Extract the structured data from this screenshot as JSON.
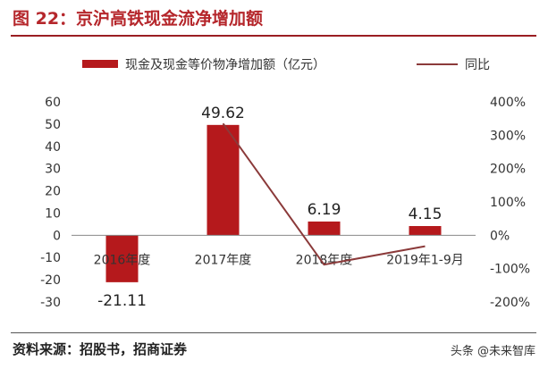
{
  "figure": {
    "title": "图 22：京沪高铁现金流净增加额",
    "source": "资料来源：招股书，招商证券",
    "watermark": "头条 @未来智库"
  },
  "chart_data": {
    "type": "bar",
    "categories": [
      "2016年度",
      "2017年度",
      "2018年度",
      "2019年1-9月"
    ],
    "series": [
      {
        "name": "现金及现金等价物净增加额（亿元）",
        "type": "bar",
        "axis": "left",
        "color": "#b5191c",
        "values": [
          -21.11,
          49.62,
          6.19,
          4.15
        ],
        "labels": [
          "-21.11",
          "49.62",
          "6.19",
          "4.15"
        ]
      },
      {
        "name": "同比",
        "type": "line",
        "axis": "right",
        "color": "#8b3a3a",
        "values": [
          null,
          335,
          -88,
          -33
        ]
      }
    ],
    "y_left": {
      "min": -30,
      "max": 60,
      "ticks": [
        60,
        50,
        40,
        30,
        20,
        10,
        0,
        -10,
        -20,
        -30
      ],
      "tick_labels": [
        "60",
        "50",
        "40",
        "30",
        "20",
        "10",
        "0",
        "-10",
        "-20",
        "-30"
      ]
    },
    "y_right": {
      "min": -200,
      "max": 400,
      "ticks": [
        400,
        300,
        200,
        100,
        0,
        -100,
        -200
      ],
      "tick_labels": [
        "400%",
        "300%",
        "200%",
        "100%",
        "0%",
        "-100%",
        "-200%"
      ]
    },
    "legend_position": "top",
    "grid": false
  }
}
